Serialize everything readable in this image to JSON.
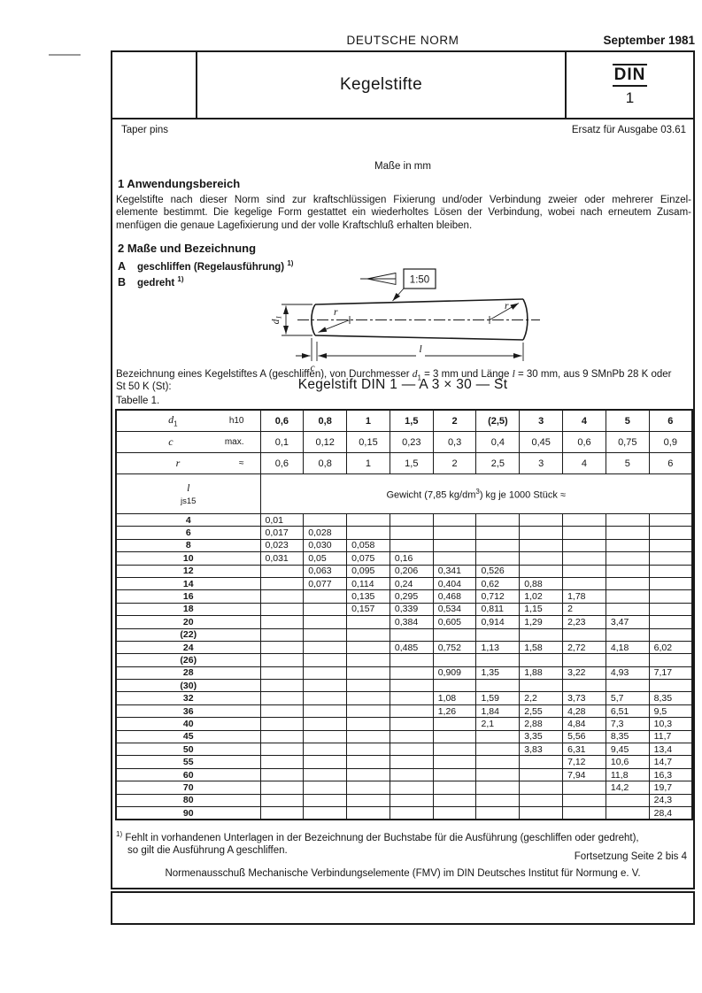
{
  "header": {
    "norm_label": "DEUTSCHE NORM",
    "date": "September 1981",
    "title": "Kegelstifte",
    "din_word": "DIN",
    "din_number": "1",
    "subtitle_en": "Taper pins",
    "replaces": "Ersatz für Ausgabe 03.61",
    "units_note": "Maße in mm"
  },
  "section1": {
    "heading": "1  Anwendungsbereich",
    "lines": [
      "Kegelstifte nach dieser Norm sind zur kraftschlüssigen Fixierung und/oder Verbindung zweier oder mehrerer Einzel-",
      "elemente bestimmt. Die kegelige Form gestattet ein wiederholtes Lösen der Verbindung, wobei nach erneutem Zusam-",
      "menfügen die genaue Lagefixierung und der volle Kraftschluß erhalten bleiben."
    ]
  },
  "section2": {
    "heading": "2  Maße und Bezeichnung",
    "variant_a_letter": "A",
    "variant_a_text": "geschliffen (Regelausführung)",
    "variant_a_fn": "1)",
    "variant_b_letter": "B",
    "variant_b_text": "gedreht",
    "variant_b_fn": "1)"
  },
  "drawing": {
    "taper_ratio": "1:50",
    "d_sym": "d",
    "d_sub": "1",
    "r_left": "r",
    "r_right": "r",
    "l_label": "l",
    "c_label": "c"
  },
  "designation": {
    "line1_prefix": "Bezeichnung eines Kegelstiftes A (geschliffen), von Durchmesser ",
    "d_sym": "d",
    "d_sub": "1",
    "line1_mid": " = 3 mm und Länge ",
    "l_sym": "l",
    "line1_suffix": " = 30 mm, aus 9 SMnPb 28 K oder",
    "line2": "St 50 K (St):",
    "example": "Kegelstift DIN 1 — A 3 × 30 — St",
    "table_caption": "Tabelle 1."
  },
  "table": {
    "header_rows": [
      {
        "sym": "d",
        "sub": "1",
        "tol": "h10",
        "bold": true,
        "values": [
          "0,6",
          "0,8",
          "1",
          "1,5",
          "2",
          "(2,5)",
          "3",
          "4",
          "5",
          "6"
        ]
      },
      {
        "sym": "c",
        "sub": "",
        "tol": "max.",
        "bold": false,
        "values": [
          "0,1",
          "0,12",
          "0,15",
          "0,23",
          "0,3",
          "0,4",
          "0,45",
          "0,6",
          "0,75",
          "0,9"
        ]
      },
      {
        "sym": "r",
        "sub": "",
        "tol": "≈",
        "bold": false,
        "values": [
          "0,6",
          "0,8",
          "1",
          "1,5",
          "2",
          "2,5",
          "3",
          "4",
          "5",
          "6"
        ]
      }
    ],
    "length_sym": "l",
    "length_tol": "js15",
    "weight_header_prefix": "Gewicht (7,85 kg/dm",
    "weight_header_sup": "3",
    "weight_header_suffix": ") kg je 1000 Stück ≈",
    "rows": [
      {
        "l": "4",
        "values": [
          "0,01",
          "",
          "",
          "",
          "",
          "",
          "",
          "",
          "",
          ""
        ]
      },
      {
        "l": "6",
        "values": [
          "0,017",
          "0,028",
          "",
          "",
          "",
          "",
          "",
          "",
          "",
          ""
        ]
      },
      {
        "l": "8",
        "values": [
          "0,023",
          "0,030",
          "0,058",
          "",
          "",
          "",
          "",
          "",
          "",
          ""
        ]
      },
      {
        "l": "10",
        "values": [
          "0,031",
          "0,05",
          "0,075",
          "0,16",
          "",
          "",
          "",
          "",
          "",
          ""
        ]
      },
      {
        "l": "12",
        "values": [
          "",
          "0,063",
          "0,095",
          "0,206",
          "0,341",
          "0,526",
          "",
          "",
          "",
          ""
        ]
      },
      {
        "l": "14",
        "values": [
          "",
          "0,077",
          "0,114",
          "0,24",
          "0,404",
          "0,62",
          "0,88",
          "",
          "",
          ""
        ]
      },
      {
        "l": "16",
        "values": [
          "",
          "",
          "0,135",
          "0,295",
          "0,468",
          "0,712",
          "1,02",
          "1,78",
          "",
          ""
        ]
      },
      {
        "l": "18",
        "values": [
          "",
          "",
          "0,157",
          "0,339",
          "0,534",
          "0,811",
          "1,15",
          "2",
          "",
          ""
        ]
      },
      {
        "l": "20",
        "values": [
          "",
          "",
          "",
          "0,384",
          "0,605",
          "0,914",
          "1,29",
          "2,23",
          "3,47",
          ""
        ]
      },
      {
        "l": "(22)",
        "values": [
          "",
          "",
          "",
          "",
          "",
          "",
          "",
          "",
          "",
          ""
        ]
      },
      {
        "l": "24",
        "values": [
          "",
          "",
          "",
          "0,485",
          "0,752",
          "1,13",
          "1,58",
          "2,72",
          "4,18",
          "6,02"
        ]
      },
      {
        "l": "(26)",
        "values": [
          "",
          "",
          "",
          "",
          "",
          "",
          "",
          "",
          "",
          ""
        ]
      },
      {
        "l": "28",
        "values": [
          "",
          "",
          "",
          "",
          "0,909",
          "1,35",
          "1,88",
          "3,22",
          "4,93",
          "7,17"
        ]
      },
      {
        "l": "(30)",
        "values": [
          "",
          "",
          "",
          "",
          "",
          "",
          "",
          "",
          "",
          ""
        ]
      },
      {
        "l": "32",
        "values": [
          "",
          "",
          "",
          "",
          "1,08",
          "1,59",
          "2,2",
          "3,73",
          "5,7",
          "8,35"
        ]
      },
      {
        "l": "36",
        "values": [
          "",
          "",
          "",
          "",
          "1,26",
          "1,84",
          "2,55",
          "4,28",
          "6,51",
          "9,5"
        ]
      },
      {
        "l": "40",
        "values": [
          "",
          "",
          "",
          "",
          "",
          "2,1",
          "2,88",
          "4,84",
          "7,3",
          "10,3"
        ]
      },
      {
        "l": "45",
        "values": [
          "",
          "",
          "",
          "",
          "",
          "",
          "3,35",
          "5,56",
          "8,35",
          "11,7"
        ]
      },
      {
        "l": "50",
        "values": [
          "",
          "",
          "",
          "",
          "",
          "",
          "3,83",
          "6,31",
          "9,45",
          "13,4"
        ]
      },
      {
        "l": "55",
        "values": [
          "",
          "",
          "",
          "",
          "",
          "",
          "",
          "7,12",
          "10,6",
          "14,7"
        ]
      },
      {
        "l": "60",
        "values": [
          "",
          "",
          "",
          "",
          "",
          "",
          "",
          "7,94",
          "11,8",
          "16,3"
        ]
      },
      {
        "l": "70",
        "values": [
          "",
          "",
          "",
          "",
          "",
          "",
          "",
          "",
          "14,2",
          "19,7"
        ]
      },
      {
        "l": "80",
        "values": [
          "",
          "",
          "",
          "",
          "",
          "",
          "",
          "",
          "",
          "24,3"
        ]
      },
      {
        "l": "90",
        "values": [
          "",
          "",
          "",
          "",
          "",
          "",
          "",
          "",
          "",
          "28,4"
        ]
      }
    ]
  },
  "footnote": {
    "marker": "1)",
    "line1": "Fehlt in vorhandenen Unterlagen in der Bezeichnung der Buchstabe für die Ausführung (geschliffen oder gedreht),",
    "line2": "so gilt die Ausführung A geschliffen."
  },
  "footer": {
    "continuation": "Fortsetzung Seite 2 bis 4",
    "committee": "Normenausschuß Mechanische Verbindungselemente (FMV) im DIN Deutsches Institut für Normung e. V."
  }
}
